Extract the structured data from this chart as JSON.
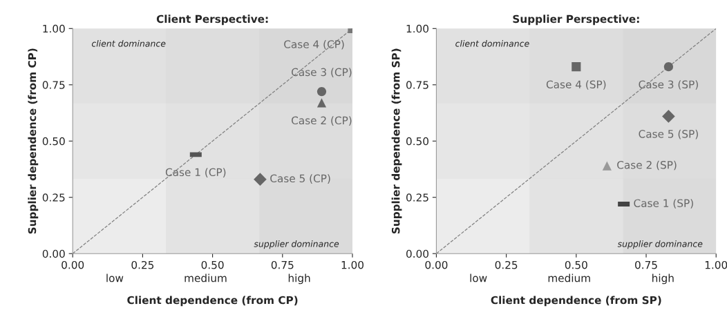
{
  "chart_data": [
    {
      "type": "scatter",
      "title": "Client Perspective:",
      "xlabel": "Client dependence (from CP)",
      "ylabel": "Supplier dependence (from CP)",
      "xlim": [
        0,
        1
      ],
      "ylim": [
        0,
        1
      ],
      "xticks": [
        {
          "value": 0,
          "label": "0.00"
        },
        {
          "value": 0.25,
          "label": "0.25"
        },
        {
          "value": 0.5,
          "label": "0.50"
        },
        {
          "value": 0.75,
          "label": "0.75"
        },
        {
          "value": 1,
          "label": "1.00"
        }
      ],
      "yticks": [
        {
          "value": 0,
          "label": "0.00"
        },
        {
          "value": 0.25,
          "label": "0.25"
        },
        {
          "value": 0.5,
          "label": "0.50"
        },
        {
          "value": 0.75,
          "label": "0.75"
        },
        {
          "value": 1,
          "label": "1.00"
        }
      ],
      "grid": false,
      "bands": [
        {
          "axis": "x",
          "from": 0.333,
          "to": 0.667,
          "color": "#d9d9d9"
        },
        {
          "axis": "x",
          "from": 0.667,
          "to": 1,
          "color": "#c8c8c8"
        },
        {
          "axis": "y",
          "from": 0.333,
          "to": 0.667,
          "color": "#e0e0e0"
        },
        {
          "axis": "y",
          "from": 0.667,
          "to": 1,
          "color": "#d4d4d4"
        }
      ],
      "series": [
        {
          "type": "line",
          "color": "#808080",
          "line_style": "dashed",
          "x": [
            0,
            1
          ],
          "values": [
            0,
            1
          ]
        },
        {
          "name": "Case 1 (CP)",
          "color": "#555555",
          "x": [
            0.44
          ],
          "values": [
            0.44
          ]
        },
        {
          "name": "Case 2 (CP)",
          "color": "#666666",
          "marker": "triangle",
          "x": [
            0.89
          ],
          "values": [
            0.67
          ]
        },
        {
          "name": "Case 3 (CP)",
          "color": "#666666",
          "marker": "circle",
          "x": [
            0.89
          ],
          "values": [
            0.72
          ]
        },
        {
          "name": "Case 4 (CP)",
          "color": "#777777",
          "marker": "square",
          "x": [
            1.0
          ],
          "values": [
            1.0
          ]
        },
        {
          "name": "Case 5 (CP)",
          "color": "#666666",
          "marker": "diamond",
          "x": [
            0.67
          ],
          "values": [
            0.33
          ]
        }
      ],
      "annotations": [
        "client dominance",
        "supplier dominance",
        "low",
        "medium",
        "high"
      ]
    },
    {
      "type": "scatter",
      "title": "Supplier Perspective:",
      "xlabel": "Client dependence (from SP)",
      "ylabel": "Supplier dependence (from SP)",
      "xlim": [
        0,
        1
      ],
      "ylim": [
        0,
        1
      ],
      "xticks": [
        {
          "value": 0,
          "label": "0.00"
        },
        {
          "value": 0.25,
          "label": "0.25"
        },
        {
          "value": 0.5,
          "label": "0.50"
        },
        {
          "value": 0.75,
          "label": "0.75"
        },
        {
          "value": 1,
          "label": "1.00"
        }
      ],
      "yticks": [
        {
          "value": 0,
          "label": "0.00"
        },
        {
          "value": 0.25,
          "label": "0.25"
        },
        {
          "value": 0.5,
          "label": "0.50"
        },
        {
          "value": 0.75,
          "label": "0.75"
        },
        {
          "value": 1,
          "label": "1.00"
        }
      ],
      "grid": false,
      "bands": [
        {
          "axis": "x",
          "from": 0.333,
          "to": 0.667,
          "color": "#d9d9d9"
        },
        {
          "axis": "x",
          "from": 0.667,
          "to": 1,
          "color": "#c8c8c8"
        },
        {
          "axis": "y",
          "from": 0.333,
          "to": 0.667,
          "color": "#e0e0e0"
        },
        {
          "axis": "y",
          "from": 0.667,
          "to": 1,
          "color": "#d4d4d4"
        }
      ],
      "series": [
        {
          "type": "line",
          "color": "#808080",
          "line_style": "dashed",
          "x": [
            0,
            1
          ],
          "values": [
            0,
            1
          ]
        },
        {
          "name": "Case 1 (SP)",
          "color": "#444444",
          "x": [
            0.67
          ],
          "values": [
            0.22
          ]
        },
        {
          "name": "Case 2 (SP)",
          "color": "#999999",
          "marker": "triangle",
          "x": [
            0.61
          ],
          "values": [
            0.39
          ]
        },
        {
          "name": "Case 3 (SP)",
          "color": "#666666",
          "marker": "circle",
          "x": [
            0.83
          ],
          "values": [
            0.83
          ]
        },
        {
          "name": "Case 4 (SP)",
          "color": "#666666",
          "marker": "square",
          "x": [
            0.5
          ],
          "values": [
            0.83
          ]
        },
        {
          "name": "Case 5 (SP)",
          "color": "#666666",
          "marker": "diamond",
          "x": [
            0.83
          ],
          "values": [
            0.61
          ]
        }
      ],
      "annotations": [
        "client dominance",
        "supplier dominance",
        "low",
        "medium",
        "high"
      ]
    }
  ]
}
